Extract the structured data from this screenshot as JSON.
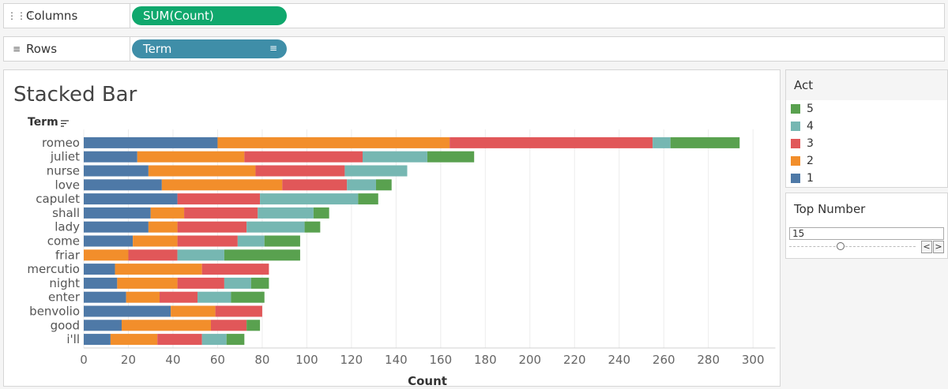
{
  "shelves": {
    "columns": {
      "label": "Columns",
      "icon": "columns-icon",
      "pill": "SUM(Count)"
    },
    "rows": {
      "label": "Rows",
      "icon": "rows-icon",
      "pill": "Term"
    }
  },
  "colors": {
    "act1": "#4e79a7",
    "act2": "#f28e2b",
    "act3": "#e15759",
    "act4": "#76b7b2",
    "act5": "#59a14f"
  },
  "legend": {
    "title": "Act",
    "items": [
      {
        "label": "5",
        "color": "#59a14f"
      },
      {
        "label": "4",
        "color": "#76b7b2"
      },
      {
        "label": "3",
        "color": "#e15759"
      },
      {
        "label": "2",
        "color": "#f28e2b"
      },
      {
        "label": "1",
        "color": "#4e79a7"
      }
    ]
  },
  "parameter": {
    "title": "Top Number",
    "value": "15",
    "prev": "<",
    "next": ">"
  },
  "chart_data": {
    "type": "bar",
    "orientation": "horizontal",
    "stacked": true,
    "title": "Stacked Bar",
    "xlabel": "Count",
    "ylabel": "Term",
    "xlim": [
      0,
      310
    ],
    "xticks": [
      0,
      20,
      40,
      60,
      80,
      100,
      120,
      140,
      160,
      180,
      200,
      220,
      240,
      260,
      280,
      300
    ],
    "grid": true,
    "legend_position": "right",
    "categories": [
      "romeo",
      "juliet",
      "nurse",
      "love",
      "capulet",
      "shall",
      "lady",
      "come",
      "friar",
      "mercutio",
      "night",
      "enter",
      "benvolio",
      "good",
      "i'll"
    ],
    "series": [
      {
        "name": "1",
        "values": [
          60,
          24,
          29,
          35,
          42,
          30,
          29,
          22,
          0,
          14,
          15,
          19,
          39,
          17,
          12
        ]
      },
      {
        "name": "2",
        "values": [
          104,
          48,
          48,
          54,
          0,
          15,
          13,
          20,
          20,
          39,
          27,
          15,
          20,
          40,
          21
        ]
      },
      {
        "name": "3",
        "values": [
          91,
          53,
          40,
          29,
          37,
          33,
          31,
          27,
          22,
          30,
          21,
          17,
          21,
          16,
          20
        ]
      },
      {
        "name": "4",
        "values": [
          8,
          29,
          28,
          13,
          44,
          25,
          26,
          12,
          21,
          0,
          12,
          15,
          0,
          0,
          11
        ]
      },
      {
        "name": "5",
        "values": [
          31,
          21,
          0,
          7,
          9,
          7,
          7,
          16,
          34,
          0,
          8,
          15,
          0,
          6,
          8
        ]
      }
    ]
  }
}
